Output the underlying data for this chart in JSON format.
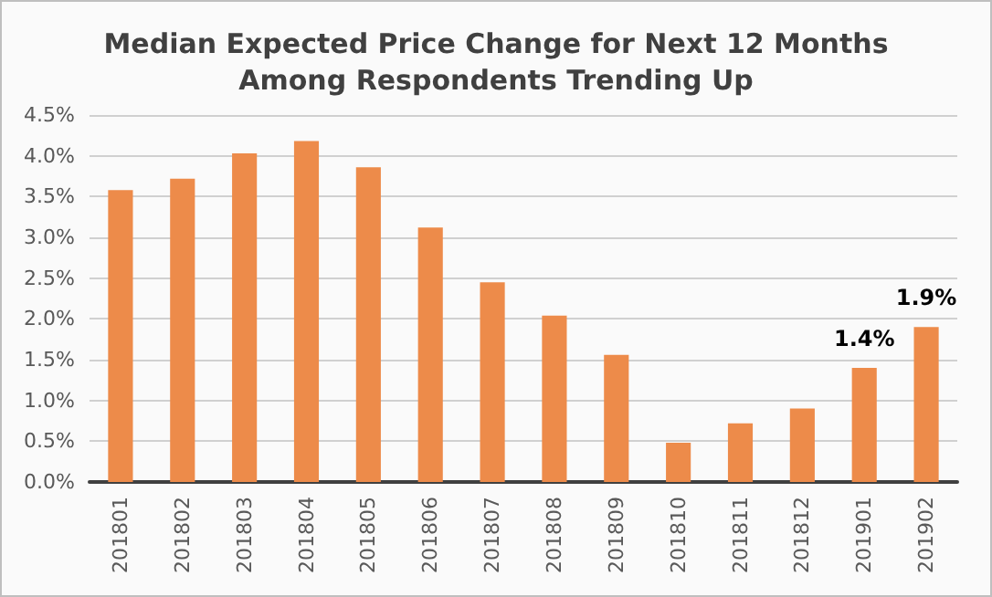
{
  "chart_data": {
    "type": "bar",
    "title": "Median Expected Price Change for Next 12 Months\nAmong Respondents Trending Up",
    "categories": [
      "201801",
      "201802",
      "201803",
      "201804",
      "201805",
      "201806",
      "201807",
      "201808",
      "201809",
      "201810",
      "201811",
      "201812",
      "201901",
      "201902"
    ],
    "values": [
      3.58,
      3.72,
      4.03,
      4.18,
      3.86,
      3.12,
      2.45,
      2.04,
      1.56,
      0.48,
      0.72,
      0.9,
      1.4,
      1.9
    ],
    "value_labels": [
      null,
      null,
      null,
      null,
      null,
      null,
      null,
      null,
      null,
      null,
      null,
      null,
      "1.4%",
      "1.9%"
    ],
    "color": "#ed8b4a",
    "ylim": [
      0,
      4.5
    ],
    "yticks": [
      {
        "value": 0,
        "label": "0.0%"
      },
      {
        "value": 0.5,
        "label": "0.5%"
      },
      {
        "value": 1,
        "label": "1.0%"
      },
      {
        "value": 1.5,
        "label": "1.5%"
      },
      {
        "value": 2,
        "label": "2.0%"
      },
      {
        "value": 2.5,
        "label": "2.5%"
      },
      {
        "value": 3,
        "label": "3.0%"
      },
      {
        "value": 3.5,
        "label": "3.5%"
      },
      {
        "value": 4,
        "label": "4.0%"
      },
      {
        "value": 4.5,
        "label": "4.5%"
      }
    ],
    "grid": "y"
  }
}
